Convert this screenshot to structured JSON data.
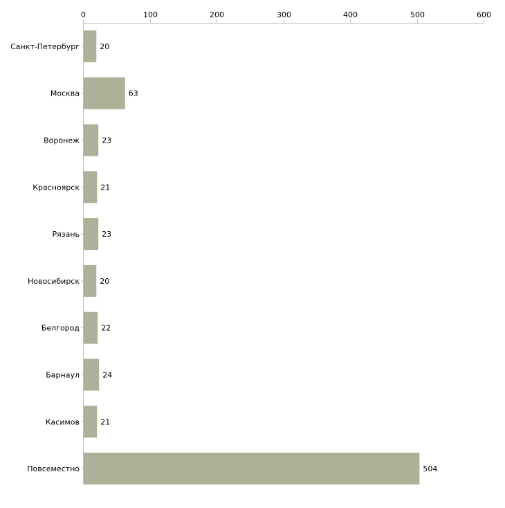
{
  "chart_data": {
    "type": "bar",
    "orientation": "horizontal",
    "title": "",
    "xlabel": "",
    "ylabel": "",
    "xlim": [
      0,
      600
    ],
    "ticks": [
      0,
      100,
      200,
      300,
      400,
      500,
      600
    ],
    "tick_labels": [
      "0",
      "100",
      "200",
      "300",
      "400",
      "500",
      "600"
    ],
    "axis_position": "top",
    "grid": false,
    "bar_color": "#abb297",
    "categories": [
      "Санкт-Петербург",
      "Москва",
      "Воронеж",
      "Красноярск",
      "Рязань",
      "Новосибирск",
      "Белгород",
      "Барнаул",
      "Касимов",
      "Повсеместно"
    ],
    "values": [
      20,
      63,
      23,
      21,
      23,
      20,
      22,
      24,
      21,
      504
    ],
    "value_labels": [
      "20",
      "63",
      "23",
      "21",
      "23",
      "20",
      "22",
      "24",
      "21",
      "504"
    ]
  }
}
